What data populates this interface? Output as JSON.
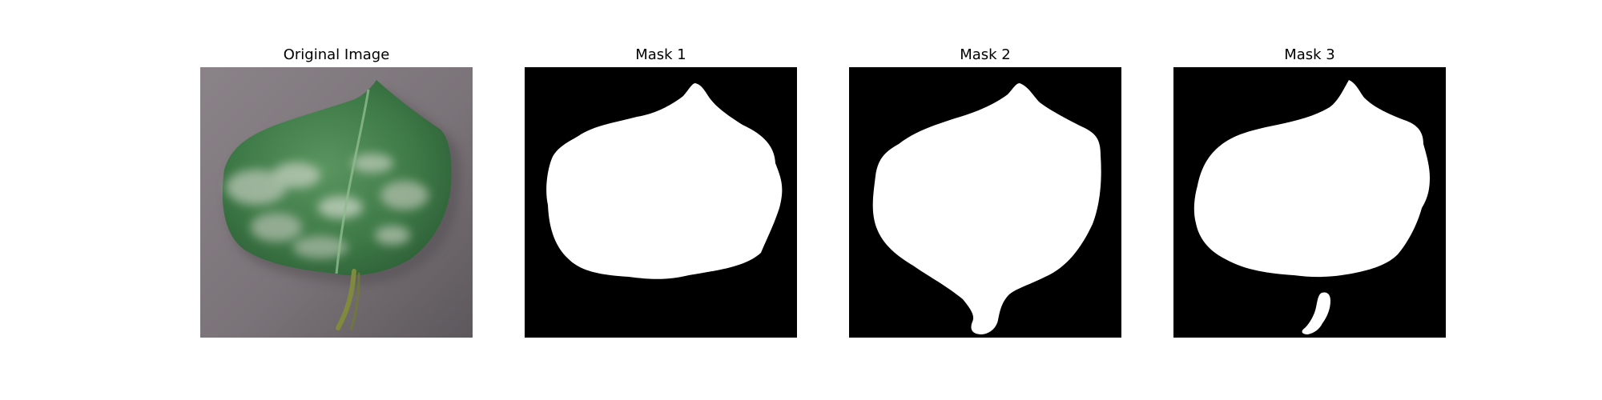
{
  "figure": {
    "panels": [
      {
        "title": "Original Image"
      },
      {
        "title": "Mask 1"
      },
      {
        "title": "Mask 2"
      },
      {
        "title": "Mask 3"
      }
    ]
  },
  "colors": {
    "background": "#ffffff",
    "mask_background": "#000000",
    "mask_foreground": "#ffffff",
    "table_surface": "#7b7479",
    "leaf_green": "#3f7a45",
    "leaf_highlight": "#c9d4c4"
  }
}
